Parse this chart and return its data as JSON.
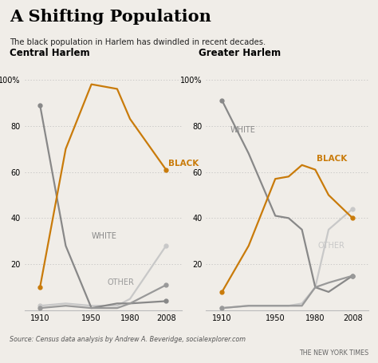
{
  "title": "A Shifting Population",
  "subtitle": "The black population in Harlem has dwindled in recent decades.",
  "source": "Source: Census data analysis by Andrew A. Beveridge, socialexplorer.com",
  "nyt_credit": "THE NEW YORK TIMES",
  "left_title": "Central Harlem",
  "right_title": "Greater Harlem",
  "ch_years": [
    1910,
    1930,
    1950,
    1970,
    1980,
    2008
  ],
  "ch_black": [
    10,
    70,
    98,
    96,
    83,
    61
  ],
  "ch_white": [
    89,
    28,
    1,
    3,
    3,
    4
  ],
  "ch_other_light": [
    2,
    3,
    2,
    2,
    5,
    28
  ],
  "ch_other_dark": [
    1,
    2,
    1,
    1,
    3,
    11
  ],
  "gh_years": [
    1910,
    1930,
    1950,
    1960,
    1970,
    1980,
    1990,
    2008
  ],
  "gh_black": [
    8,
    28,
    57,
    58,
    63,
    61,
    50,
    40
  ],
  "gh_white": [
    91,
    68,
    41,
    40,
    35,
    10,
    8,
    15
  ],
  "gh_other_light": [
    1,
    2,
    2,
    2,
    3,
    10,
    35,
    44
  ],
  "gh_other_dark": [
    1,
    2,
    2,
    2,
    2,
    10,
    12,
    15
  ],
  "color_black": "#c97b0a",
  "color_white": "#888888",
  "color_other_dark": "#999999",
  "color_other_light": "#c8c8c8",
  "bg_color": "#f0ede8",
  "ylim": [
    0,
    107
  ],
  "yticks": [
    20,
    40,
    60,
    80,
    100
  ],
  "ytick_labels": [
    "20",
    "40",
    "60",
    "80",
    "100%"
  ],
  "xticks_ch": [
    1910,
    1950,
    1980,
    2008
  ],
  "xticks_gh": [
    1910,
    1950,
    1980,
    2008
  ]
}
